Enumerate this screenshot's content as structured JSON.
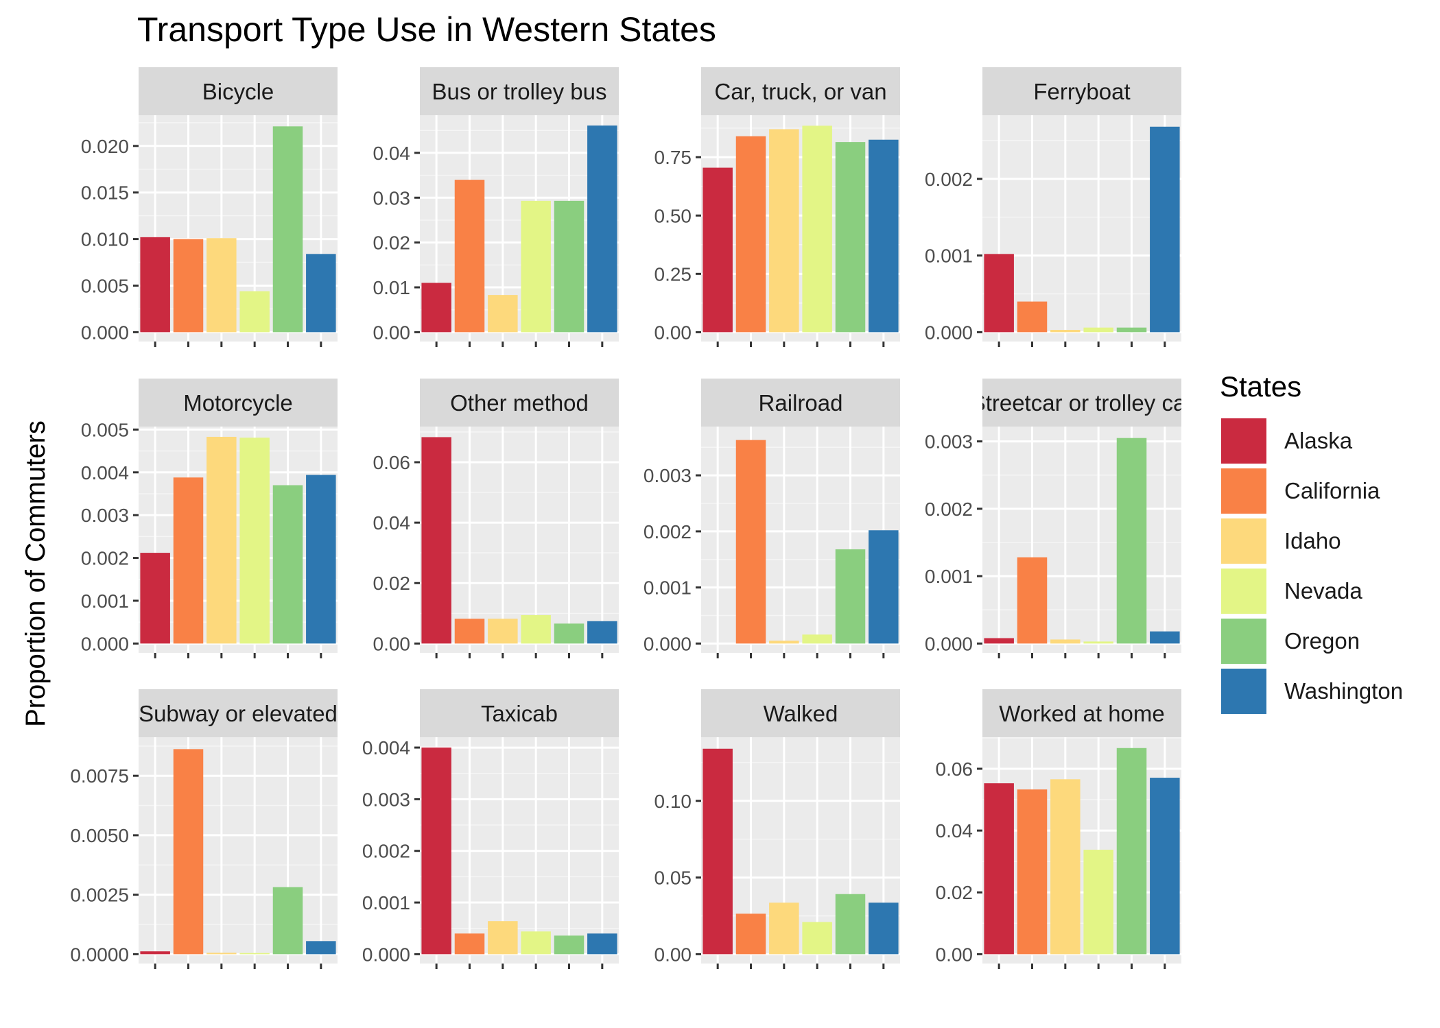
{
  "chart_data": {
    "type": "bar",
    "title": "Transport Type Use in Western States",
    "ylabel": "Proportion of Commuters",
    "xlabel": "",
    "legend": {
      "title": "States",
      "position": "right",
      "entries": [
        "Alaska",
        "California",
        "Idaho",
        "Nevada",
        "Oregon",
        "Washington"
      ]
    },
    "colors": [
      "#CA2A40",
      "#F98146",
      "#FDD97C",
      "#E3F586",
      "#8ACE7F",
      "#2D77B0"
    ],
    "grid": true,
    "facets": [
      {
        "name": "Bicycle",
        "yticks": [
          "0.000",
          "0.005",
          "0.010",
          "0.015",
          "0.020"
        ],
        "ymax": 0.0233,
        "values": [
          0.0102,
          0.01,
          0.0101,
          0.0044,
          0.0221,
          0.0084
        ]
      },
      {
        "name": "Bus or trolley bus",
        "yticks": [
          "0.00",
          "0.01",
          "0.02",
          "0.03",
          "0.04"
        ],
        "ymax": 0.0484,
        "values": [
          0.011,
          0.034,
          0.0083,
          0.0293,
          0.0293,
          0.0461
        ]
      },
      {
        "name": "Car, truck, or van",
        "yticks": [
          "0.00",
          "0.25",
          "0.50",
          "0.75"
        ],
        "ymax": 0.93,
        "values": [
          0.705,
          0.84,
          0.87,
          0.885,
          0.815,
          0.825
        ]
      },
      {
        "name": "Ferryboat",
        "yticks": [
          "0.000",
          "0.001",
          "0.002"
        ],
        "ymax": 0.00283,
        "values": [
          0.00102,
          0.0004,
          3e-05,
          6e-05,
          6e-05,
          0.00268
        ]
      },
      {
        "name": "Motorcycle",
        "yticks": [
          "0.000",
          "0.001",
          "0.002",
          "0.003",
          "0.004",
          "0.005"
        ],
        "ymax": 0.00507,
        "values": [
          0.00212,
          0.00388,
          0.00483,
          0.00481,
          0.0037,
          0.00394
        ]
      },
      {
        "name": "Other method",
        "yticks": [
          "0.00",
          "0.02",
          "0.04",
          "0.06"
        ],
        "ymax": 0.0718,
        "values": [
          0.0683,
          0.0082,
          0.0082,
          0.0094,
          0.0066,
          0.0074
        ]
      },
      {
        "name": "Railroad",
        "yticks": [
          "0.000",
          "0.001",
          "0.002",
          "0.003"
        ],
        "ymax": 0.00387,
        "values": [
          0.0,
          0.00363,
          5e-05,
          0.00016,
          0.00168,
          0.00202
        ]
      },
      {
        "name": "Streetcar or trolley car",
        "yticks": [
          "0.000",
          "0.001",
          "0.002",
          "0.003"
        ],
        "ymax": 0.00322,
        "values": [
          8e-05,
          0.00128,
          6e-05,
          3e-05,
          0.00305,
          0.00018
        ]
      },
      {
        "name": "Subway or elevated",
        "yticks": [
          "0.0000",
          "0.0025",
          "0.0050",
          "0.0075"
        ],
        "ymax": 0.00912,
        "values": [
          0.00012,
          0.00862,
          6e-05,
          5e-05,
          0.00282,
          0.00055
        ]
      },
      {
        "name": "Taxicab",
        "yticks": [
          "0.000",
          "0.001",
          "0.002",
          "0.003",
          "0.004"
        ],
        "ymax": 0.0042,
        "values": [
          0.004,
          0.0004,
          0.00064,
          0.00044,
          0.00036,
          0.0004
        ]
      },
      {
        "name": "Walked",
        "yticks": [
          "0.00",
          "0.05",
          "0.10"
        ],
        "ymax": 0.1415,
        "values": [
          0.134,
          0.0264,
          0.0336,
          0.021,
          0.0392,
          0.0336
        ]
      },
      {
        "name": "Worked at home",
        "yticks": [
          "0.00",
          "0.02",
          "0.04",
          "0.06"
        ],
        "ymax": 0.0702,
        "values": [
          0.0553,
          0.0533,
          0.0566,
          0.0338,
          0.0667,
          0.0571
        ]
      }
    ]
  }
}
